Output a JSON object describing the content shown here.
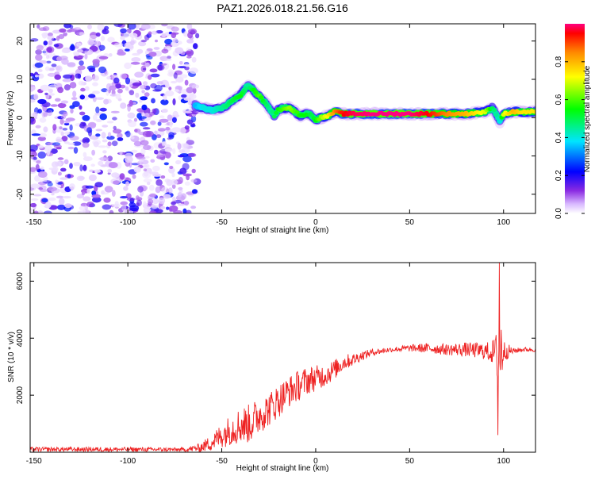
{
  "figure": {
    "title": "PAZ1.2026.018.21.56.G16"
  },
  "chart_data": [
    {
      "type": "heatmap",
      "name": "spectrogram",
      "xlabel": "Height of straight line (km)",
      "ylabel": "Frequency (Hz)",
      "xlim": [
        -152,
        117
      ],
      "ylim": [
        -25,
        24.5
      ],
      "xticks": [
        -150,
        -100,
        -50,
        0,
        50,
        100
      ],
      "yticks": [
        -20,
        -10,
        0,
        10,
        20
      ],
      "noise_region": {
        "x": [
          -152,
          -63
        ],
        "amplitude_range": [
          0.02,
          0.25
        ]
      },
      "ridge": {
        "x": [
          -64,
          -60,
          -55,
          -50,
          -45,
          -40,
          -36,
          -33,
          -30,
          -27,
          -24,
          -22,
          -20,
          -17,
          -14,
          -11,
          -8,
          -5,
          -2,
          0,
          3,
          7,
          10,
          15,
          20,
          30,
          40,
          50,
          60,
          70,
          80,
          90,
          94,
          96,
          98,
          100,
          105,
          110,
          117
        ],
        "frequency": [
          3,
          2.5,
          2,
          2.5,
          4,
          6,
          8.5,
          7,
          5.5,
          4,
          2,
          0.5,
          2,
          2.5,
          2.5,
          1.5,
          0.5,
          1,
          0.5,
          -0.5,
          0,
          0.5,
          1.5,
          1,
          1,
          1,
          1,
          1,
          1,
          1,
          1,
          1.5,
          2.5,
          1,
          -1,
          1,
          1.5,
          1.5,
          1.5
        ],
        "amplitude": [
          0.35,
          0.4,
          0.4,
          0.45,
          0.5,
          0.55,
          0.45,
          0.55,
          0.6,
          0.5,
          0.45,
          0.5,
          0.55,
          0.6,
          0.65,
          0.6,
          0.55,
          0.55,
          0.5,
          0.55,
          0.65,
          0.75,
          0.85,
          0.95,
          0.98,
          1.0,
          1.0,
          1.0,
          0.95,
          0.85,
          0.8,
          0.7,
          0.5,
          0.45,
          0.4,
          0.7,
          0.8,
          0.75,
          0.75
        ]
      }
    },
    {
      "type": "colorbar",
      "label": "Normalized spectral amplitude",
      "range": [
        0,
        1
      ],
      "ticks": [
        "0.0",
        "0.2",
        "0.4",
        "0.6",
        "0.8"
      ]
    },
    {
      "type": "line",
      "name": "snr",
      "xlabel": "Height of straight line (km)",
      "ylabel": "SNR (10 * v/v)",
      "xlim": [
        -152,
        117
      ],
      "ylim": [
        0,
        6650
      ],
      "xticks": [
        -150,
        -100,
        -50,
        0,
        50,
        100
      ],
      "yticks": [
        2000,
        4000,
        6000
      ],
      "color": "#ee2222",
      "envelope": {
        "x": [
          -152,
          -100,
          -70,
          -62,
          -55,
          -50,
          -45,
          -40,
          -35,
          -30,
          -25,
          -20,
          -15,
          -10,
          -5,
          0,
          5,
          10,
          15,
          20,
          25,
          30,
          35,
          40,
          50,
          60,
          70,
          80,
          90,
          94,
          96,
          97,
          98,
          99,
          100,
          105,
          110,
          117
        ],
        "mean": [
          100,
          100,
          90,
          150,
          350,
          600,
          800,
          950,
          1000,
          1300,
          1500,
          1800,
          2100,
          2300,
          2500,
          2600,
          2700,
          2900,
          3150,
          3250,
          3400,
          3500,
          3550,
          3600,
          3650,
          3650,
          3600,
          3600,
          3550,
          3500,
          3500,
          3500,
          3500,
          3550,
          3550,
          3550,
          3600,
          3600
        ],
        "jitter": [
          80,
          80,
          70,
          150,
          300,
          450,
          550,
          650,
          700,
          650,
          600,
          600,
          550,
          550,
          500,
          450,
          400,
          350,
          280,
          220,
          160,
          120,
          100,
          90,
          120,
          180,
          200,
          250,
          300,
          400,
          700,
          1400,
          2000,
          1200,
          400,
          100,
          80,
          80
        ]
      },
      "annotations": [
        {
          "x": 97.7,
          "y": 6650,
          "label": ""
        },
        {
          "x": 96.9,
          "y": 600,
          "label": ""
        }
      ]
    }
  ],
  "colors": {
    "snr_line": "#ee2222",
    "background": "#ffffff",
    "axis": "#000000",
    "noise": "#7a22ff"
  }
}
